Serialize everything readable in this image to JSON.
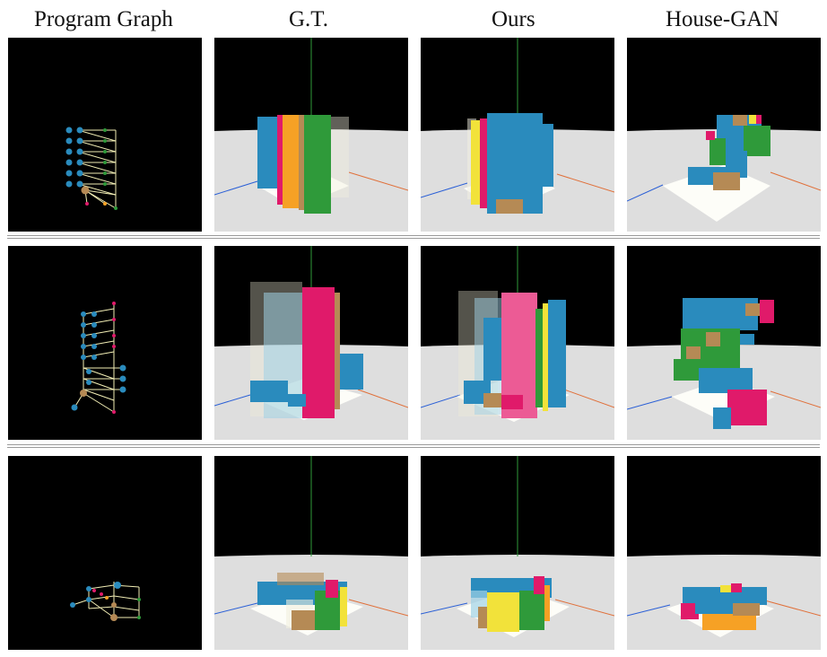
{
  "figure": {
    "columns": [
      {
        "label": "Program Graph"
      },
      {
        "label": "G.T."
      },
      {
        "label": "Ours"
      },
      {
        "label": "House-GAN"
      }
    ],
    "rows": [
      {
        "cells": [
          "program-graph",
          "ground-truth-render",
          "ours-render",
          "house-gan-render"
        ]
      },
      {
        "cells": [
          "program-graph",
          "ground-truth-render",
          "ours-render",
          "house-gan-render"
        ]
      },
      {
        "cells": [
          "program-graph",
          "ground-truth-render",
          "ours-render",
          "house-gan-render"
        ]
      }
    ],
    "colors": {
      "blue": "#2a8bbd",
      "pink": "#e01a6a",
      "green": "#2f9a3a",
      "orange": "#f6a125",
      "yellow": "#f2e23a",
      "tan": "#b58a55",
      "floor": "#dedede",
      "plot": "#fdfdf8",
      "sky": "#000000"
    }
  }
}
